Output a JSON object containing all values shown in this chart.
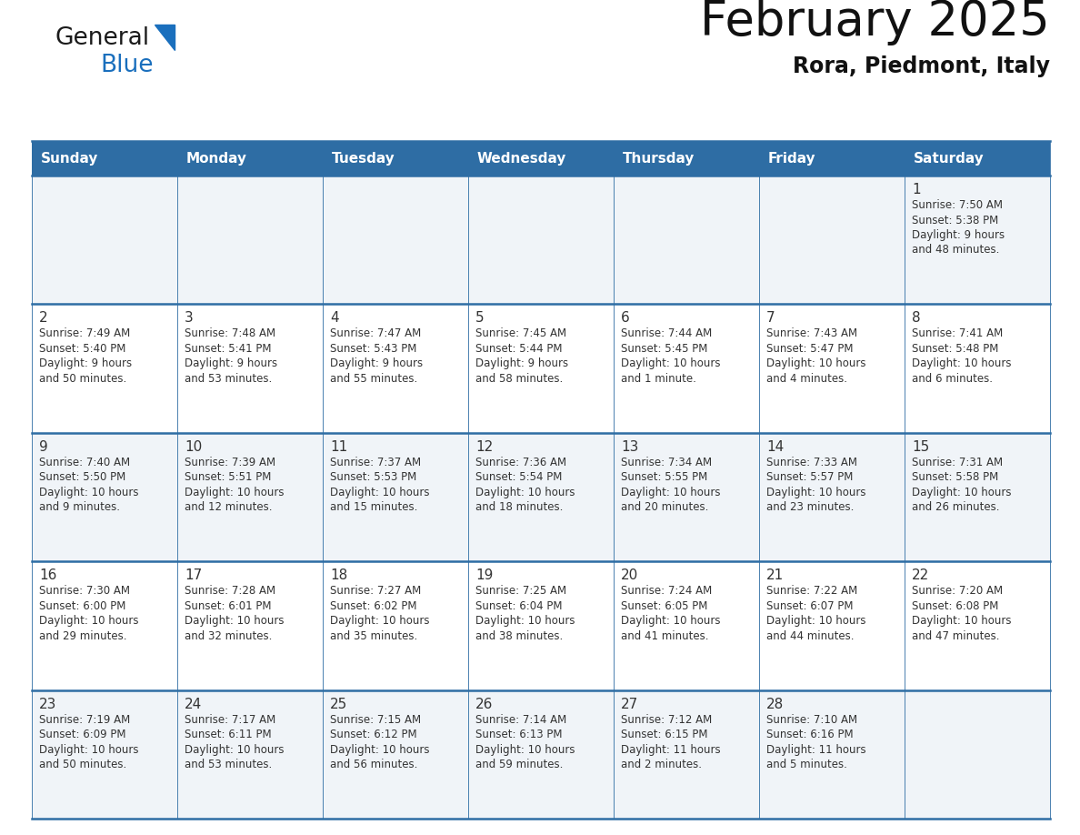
{
  "title": "February 2025",
  "subtitle": "Rora, Piedmont, Italy",
  "header_bg_color": "#2E6DA4",
  "header_text_color": "#FFFFFF",
  "border_color": "#2E6DA4",
  "text_color": "#333333",
  "day_number_color": "#333333",
  "info_text_color": "#333333",
  "days_of_week": [
    "Sunday",
    "Monday",
    "Tuesday",
    "Wednesday",
    "Thursday",
    "Friday",
    "Saturday"
  ],
  "weeks": [
    [
      {
        "day": null,
        "info": null
      },
      {
        "day": null,
        "info": null
      },
      {
        "day": null,
        "info": null
      },
      {
        "day": null,
        "info": null
      },
      {
        "day": null,
        "info": null
      },
      {
        "day": null,
        "info": null
      },
      {
        "day": "1",
        "info": "Sunrise: 7:50 AM\nSunset: 5:38 PM\nDaylight: 9 hours\nand 48 minutes."
      }
    ],
    [
      {
        "day": "2",
        "info": "Sunrise: 7:49 AM\nSunset: 5:40 PM\nDaylight: 9 hours\nand 50 minutes."
      },
      {
        "day": "3",
        "info": "Sunrise: 7:48 AM\nSunset: 5:41 PM\nDaylight: 9 hours\nand 53 minutes."
      },
      {
        "day": "4",
        "info": "Sunrise: 7:47 AM\nSunset: 5:43 PM\nDaylight: 9 hours\nand 55 minutes."
      },
      {
        "day": "5",
        "info": "Sunrise: 7:45 AM\nSunset: 5:44 PM\nDaylight: 9 hours\nand 58 minutes."
      },
      {
        "day": "6",
        "info": "Sunrise: 7:44 AM\nSunset: 5:45 PM\nDaylight: 10 hours\nand 1 minute."
      },
      {
        "day": "7",
        "info": "Sunrise: 7:43 AM\nSunset: 5:47 PM\nDaylight: 10 hours\nand 4 minutes."
      },
      {
        "day": "8",
        "info": "Sunrise: 7:41 AM\nSunset: 5:48 PM\nDaylight: 10 hours\nand 6 minutes."
      }
    ],
    [
      {
        "day": "9",
        "info": "Sunrise: 7:40 AM\nSunset: 5:50 PM\nDaylight: 10 hours\nand 9 minutes."
      },
      {
        "day": "10",
        "info": "Sunrise: 7:39 AM\nSunset: 5:51 PM\nDaylight: 10 hours\nand 12 minutes."
      },
      {
        "day": "11",
        "info": "Sunrise: 7:37 AM\nSunset: 5:53 PM\nDaylight: 10 hours\nand 15 minutes."
      },
      {
        "day": "12",
        "info": "Sunrise: 7:36 AM\nSunset: 5:54 PM\nDaylight: 10 hours\nand 18 minutes."
      },
      {
        "day": "13",
        "info": "Sunrise: 7:34 AM\nSunset: 5:55 PM\nDaylight: 10 hours\nand 20 minutes."
      },
      {
        "day": "14",
        "info": "Sunrise: 7:33 AM\nSunset: 5:57 PM\nDaylight: 10 hours\nand 23 minutes."
      },
      {
        "day": "15",
        "info": "Sunrise: 7:31 AM\nSunset: 5:58 PM\nDaylight: 10 hours\nand 26 minutes."
      }
    ],
    [
      {
        "day": "16",
        "info": "Sunrise: 7:30 AM\nSunset: 6:00 PM\nDaylight: 10 hours\nand 29 minutes."
      },
      {
        "day": "17",
        "info": "Sunrise: 7:28 AM\nSunset: 6:01 PM\nDaylight: 10 hours\nand 32 minutes."
      },
      {
        "day": "18",
        "info": "Sunrise: 7:27 AM\nSunset: 6:02 PM\nDaylight: 10 hours\nand 35 minutes."
      },
      {
        "day": "19",
        "info": "Sunrise: 7:25 AM\nSunset: 6:04 PM\nDaylight: 10 hours\nand 38 minutes."
      },
      {
        "day": "20",
        "info": "Sunrise: 7:24 AM\nSunset: 6:05 PM\nDaylight: 10 hours\nand 41 minutes."
      },
      {
        "day": "21",
        "info": "Sunrise: 7:22 AM\nSunset: 6:07 PM\nDaylight: 10 hours\nand 44 minutes."
      },
      {
        "day": "22",
        "info": "Sunrise: 7:20 AM\nSunset: 6:08 PM\nDaylight: 10 hours\nand 47 minutes."
      }
    ],
    [
      {
        "day": "23",
        "info": "Sunrise: 7:19 AM\nSunset: 6:09 PM\nDaylight: 10 hours\nand 50 minutes."
      },
      {
        "day": "24",
        "info": "Sunrise: 7:17 AM\nSunset: 6:11 PM\nDaylight: 10 hours\nand 53 minutes."
      },
      {
        "day": "25",
        "info": "Sunrise: 7:15 AM\nSunset: 6:12 PM\nDaylight: 10 hours\nand 56 minutes."
      },
      {
        "day": "26",
        "info": "Sunrise: 7:14 AM\nSunset: 6:13 PM\nDaylight: 10 hours\nand 59 minutes."
      },
      {
        "day": "27",
        "info": "Sunrise: 7:12 AM\nSunset: 6:15 PM\nDaylight: 11 hours\nand 2 minutes."
      },
      {
        "day": "28",
        "info": "Sunrise: 7:10 AM\nSunset: 6:16 PM\nDaylight: 11 hours\nand 5 minutes."
      },
      {
        "day": null,
        "info": null
      }
    ]
  ],
  "logo_color_general": "#1a1a1a",
  "logo_color_blue": "#1a6fbd",
  "logo_triangle_color": "#1a6fbd",
  "week_bg_colors": [
    "#F0F4F8",
    "#FFFFFF",
    "#F0F4F8",
    "#FFFFFF",
    "#F0F4F8"
  ]
}
